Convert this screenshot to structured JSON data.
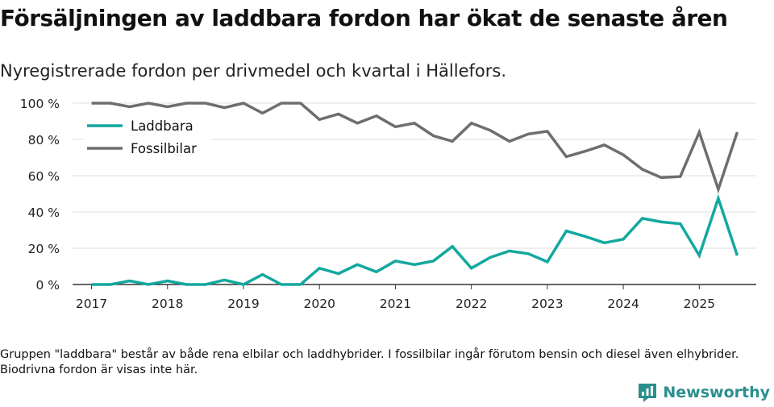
{
  "header": {
    "title": "Försäljningen av laddbara fordon har ökat de senaste åren",
    "subtitle": "Nyregistrerade fordon per drivmedel och kvartal i Hällefors."
  },
  "footnote": "Gruppen \"laddbara\" består av både rena elbilar och laddhybrider. I fossilbilar ingår förutom bensin och diesel även elhybrider. Biodrivna fordon är visas inte här.",
  "brand": {
    "name": "Newsworthy",
    "icon": "newsworthy-logo-icon",
    "color": "#2a8f8f"
  },
  "chart_data": {
    "type": "line",
    "title": "Försäljningen av laddbara fordon har ökat de senaste åren",
    "subtitle": "Nyregistrerade fordon per drivmedel och kvartal i Hällefors.",
    "xlabel": "",
    "ylabel": "",
    "ylim": [
      0,
      100
    ],
    "yticks": [
      0,
      20,
      40,
      60,
      80,
      100
    ],
    "ytick_labels": [
      "0 %",
      "20 %",
      "40 %",
      "60 %",
      "80 %",
      "100 %"
    ],
    "xlim": [
      2016.75,
      2025.75
    ],
    "xticks": [
      2017,
      2018,
      2019,
      2020,
      2021,
      2022,
      2023,
      2024,
      2025
    ],
    "xtick_labels": [
      "2017",
      "2018",
      "2019",
      "2020",
      "2021",
      "2022",
      "2023",
      "2024",
      "2025"
    ],
    "grid": true,
    "legend_position": "top-left",
    "x": [
      2017,
      2017.25,
      2017.5,
      2017.75,
      2018,
      2018.25,
      2018.5,
      2018.75,
      2019,
      2019.25,
      2019.5,
      2019.75,
      2020,
      2020.25,
      2020.5,
      2020.75,
      2021,
      2021.25,
      2021.5,
      2021.75,
      2022,
      2022.25,
      2022.5,
      2022.75,
      2023,
      2023.25,
      2023.5,
      2023.75,
      2024,
      2024.25,
      2024.5,
      2024.75,
      2025,
      2025.25,
      2025.5
    ],
    "series": [
      {
        "name": "Laddbara",
        "color": "#13a89e",
        "values": [
          0,
          0,
          2,
          0,
          2,
          0,
          0,
          2.5,
          0,
          5.5,
          0,
          0,
          9,
          6,
          11,
          7,
          13,
          11,
          13,
          21,
          9,
          15,
          18.5,
          17,
          12.5,
          29.5,
          26.5,
          23,
          25,
          36.5,
          34.5,
          33.5,
          16,
          47.5,
          16
        ]
      },
      {
        "name": "Fossilbilar",
        "color": "#6e6d72",
        "values": [
          100,
          100,
          98,
          100,
          98,
          100,
          100,
          97.5,
          100,
          94.5,
          100,
          100,
          91,
          94,
          89,
          93,
          87,
          89,
          82,
          79,
          89,
          85,
          79,
          83,
          84.5,
          70.5,
          73.5,
          77,
          71.5,
          63.5,
          59,
          59.5,
          84,
          52.5,
          84
        ]
      }
    ]
  }
}
